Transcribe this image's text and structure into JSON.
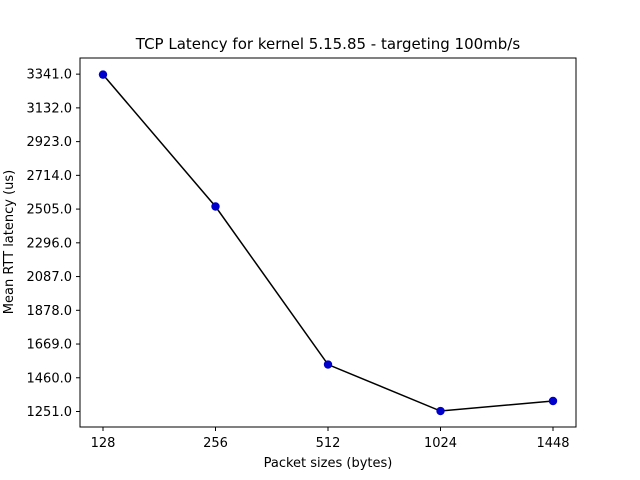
{
  "chart_data": {
    "type": "line",
    "title": "TCP Latency for kernel 5.15.85 - targeting 100mb/s",
    "xlabel": "Packet sizes (bytes)",
    "ylabel": "Mean RTT latency (us)",
    "categories": [
      "128",
      "256",
      "512",
      "1024",
      "1448"
    ],
    "series": [
      {
        "values": [
          3338,
          2521,
          1542,
          1254,
          1316
        ]
      }
    ],
    "yticks": [
      "1251.0",
      "1460.0",
      "1669.0",
      "1878.0",
      "2087.0",
      "2296.0",
      "2505.0",
      "2714.0",
      "2923.0",
      "3132.0",
      "3341.0"
    ],
    "ylim": [
      1155,
      3441
    ],
    "grid": false,
    "line_color": "#000000",
    "marker_color": "#0000cc"
  }
}
